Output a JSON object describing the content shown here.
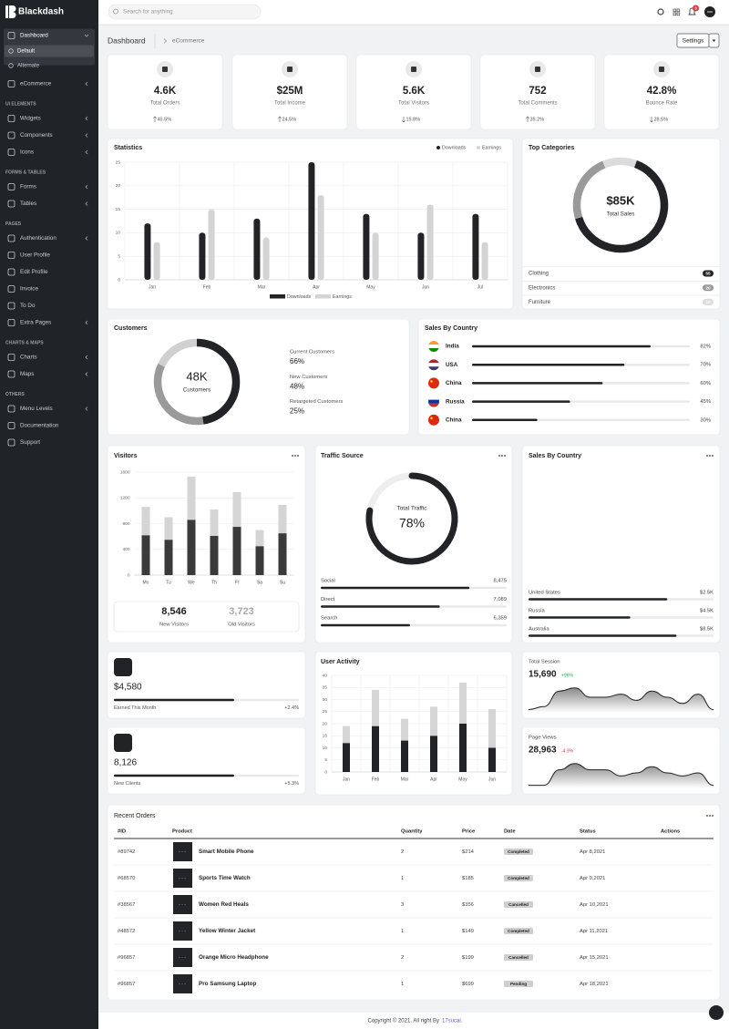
{
  "brand": "Blackdash",
  "search_placeholder": "Search for anything",
  "notifications": 3,
  "sidebar": [
    {
      "items": [
        {
          "label": "Dashboard",
          "submenu": true,
          "active": true,
          "children": [
            {
              "label": "Default",
              "active": true
            },
            {
              "label": "Alternate"
            }
          ]
        },
        {
          "label": "eCommerce",
          "submenu": true
        }
      ]
    },
    {
      "title": "UI ELEMENTS",
      "items": [
        {
          "label": "Widgets",
          "submenu": true
        },
        {
          "label": "Components",
          "submenu": true
        },
        {
          "label": "Icons",
          "submenu": true
        }
      ]
    },
    {
      "title": "FORMS & TABLES",
      "items": [
        {
          "label": "Forms",
          "submenu": true
        },
        {
          "label": "Tables",
          "submenu": true
        }
      ]
    },
    {
      "title": "PAGES",
      "items": [
        {
          "label": "Authentication",
          "submenu": true
        },
        {
          "label": "User Profile"
        },
        {
          "label": "Edit Profile"
        },
        {
          "label": "Invoice"
        },
        {
          "label": "To Do"
        },
        {
          "label": "Extra Pages",
          "submenu": true
        }
      ]
    },
    {
      "title": "CHARTS & MAPS",
      "items": [
        {
          "label": "Charts",
          "submenu": true
        },
        {
          "label": "Maps",
          "submenu": true
        }
      ]
    },
    {
      "title": "OTHERS",
      "items": [
        {
          "label": "Menu Levels",
          "submenu": true
        },
        {
          "label": "Documentation"
        },
        {
          "label": "Support"
        }
      ]
    }
  ],
  "breadcrumb": {
    "title": "Dashboard",
    "current": "eCommerce",
    "button": "Settings"
  },
  "stats": [
    {
      "value": "4.6K",
      "label": "Total Orders",
      "change": "45.5%",
      "trend": "up"
    },
    {
      "value": "$25M",
      "label": "Total Income",
      "change": "24.5%",
      "trend": "up"
    },
    {
      "value": "5.6K",
      "label": "Total Visitors",
      "change": "15.8%",
      "trend": "down"
    },
    {
      "value": "752",
      "label": "Total Comments",
      "change": "35.2%",
      "trend": "up"
    },
    {
      "value": "42.8%",
      "label": "Bounce Rate",
      "change": "28.5%",
      "trend": "down"
    }
  ],
  "statistics": {
    "type": "bar",
    "title": "Statistics",
    "categories": [
      "Jan",
      "Feb",
      "Mar",
      "Apr",
      "May",
      "Jun",
      "Jul"
    ],
    "series": [
      {
        "name": "Downloads",
        "color": "#222326",
        "values": [
          12,
          10,
          13,
          25,
          14,
          10,
          14
        ]
      },
      {
        "name": "Earnings",
        "color": "#d4d4d4",
        "values": [
          8,
          15,
          9,
          18,
          10,
          16,
          8
        ]
      }
    ],
    "ylim": [
      0,
      25
    ],
    "yticks": [
      0,
      5,
      10,
      15,
      20,
      25
    ],
    "grid": true
  },
  "top_categories": {
    "type": "pie",
    "title": "Top Categories",
    "center_value": "$85K",
    "center_label": "Total Sales",
    "categories": [
      "Clothing",
      "Electronics",
      "Furniture"
    ],
    "values": [
      55,
      20,
      10
    ],
    "colors": [
      "#222326",
      "#9a9a9a",
      "#dcdcdc"
    ]
  },
  "customers": {
    "type": "pie",
    "title": "Customers",
    "center_value": "48K",
    "center_label": "Customers",
    "categories": [
      "Current Customers",
      "New Customers",
      "Retargeted Customers"
    ],
    "values": [
      66,
      48,
      25
    ],
    "value_labels": [
      "66%",
      "48%",
      "25%"
    ],
    "colors": [
      "#222326",
      "#9a9a9a",
      "#d0d0d0"
    ]
  },
  "sales_by_country": {
    "type": "progress",
    "title": "Sales By Country",
    "categories": [
      "India",
      "USA",
      "China",
      "Russia",
      "China"
    ],
    "values": [
      82,
      70,
      60,
      45,
      30
    ],
    "value_labels": [
      "82%",
      "70%",
      "60%",
      "45%",
      "30%"
    ],
    "xlim": [
      0,
      100
    ],
    "flag_colors": [
      [
        "#ff9933",
        "#ffffff",
        "#138808"
      ],
      [
        "#b22234",
        "#ffffff",
        "#3c3b6e"
      ],
      [
        "#de2910"
      ],
      [
        "#ffffff",
        "#0039a6",
        "#d52b1e"
      ],
      [
        "#de2910"
      ]
    ]
  },
  "visitors": {
    "type": "stacked-bar",
    "title": "Visitors",
    "categories": [
      "Mo",
      "Tu",
      "We",
      "Th",
      "Fr",
      "Sa",
      "Su"
    ],
    "series": [
      {
        "color": "#3a3a3a",
        "values": [
          620,
          550,
          860,
          610,
          750,
          450,
          650
        ]
      },
      {
        "color": "#d5d5d5",
        "values": [
          440,
          350,
          670,
          410,
          540,
          250,
          440
        ]
      }
    ],
    "ylim": [
      0,
      1600
    ],
    "yticks": [
      0,
      400,
      800,
      1200,
      1600
    ],
    "grid": true,
    "summary": [
      {
        "value": "8,546",
        "label": "New Visitors"
      },
      {
        "value": "3,723",
        "label": "Old Visitors"
      }
    ]
  },
  "traffic_source": {
    "type": "gauge",
    "title": "Traffic Source",
    "label": "Total Traffic",
    "values": [
      78
    ],
    "value_labels": [
      "78%"
    ],
    "ylim": [
      0,
      100
    ],
    "sources": {
      "categories": [
        "Social",
        "Direct",
        "Search"
      ],
      "amounts": [
        "8,475",
        "7,089",
        "6,359"
      ],
      "progress": [
        80,
        64,
        48
      ],
      "xlim": [
        0,
        100
      ]
    }
  },
  "sales_by_country_2": {
    "title": "Sales By Country",
    "categories": [
      "United States",
      "Russia",
      "Australia"
    ],
    "amounts": [
      "$2.5K",
      "$4.5K",
      "$8.5K"
    ],
    "progress": [
      75,
      55,
      80
    ],
    "xlim": [
      0,
      100
    ]
  },
  "earned": {
    "value": "$4,580",
    "label": "Earned This Month",
    "change": "+2.4%",
    "progress": 65,
    "xlim": [
      0,
      100
    ]
  },
  "new_clients": {
    "value": "8,126",
    "label": "New Clients",
    "change": "+5.3%",
    "progress": 65,
    "xlim": [
      0,
      100
    ]
  },
  "user_activity": {
    "type": "stacked-bar",
    "title": "User Activity",
    "categories": [
      "Jan",
      "Feb",
      "Mar",
      "Apr",
      "May",
      "Jun"
    ],
    "series": [
      {
        "color": "#222326",
        "values": [
          12,
          19,
          13,
          15,
          20,
          10
        ]
      },
      {
        "color": "#d5d5d5",
        "values": [
          7,
          15,
          9,
          12,
          17,
          16
        ]
      }
    ],
    "ylim": [
      0,
      40
    ],
    "yticks": [
      0,
      5,
      10,
      15,
      20,
      25,
      30,
      35,
      40
    ],
    "grid": true
  },
  "total_session": {
    "type": "area",
    "title": "Total Session",
    "value": "15,690",
    "change": "+96%",
    "change_color": "#28a745",
    "values": [
      1,
      2,
      7,
      8,
      5,
      5,
      6,
      4,
      7,
      5,
      3,
      6,
      1
    ],
    "ylim": [
      0,
      10
    ]
  },
  "page_views": {
    "type": "area",
    "title": "Page Views",
    "value": "28,963",
    "change": "-4.9%",
    "change_color": "#dc3545",
    "values": [
      1,
      1,
      6,
      8,
      6,
      6,
      4,
      5,
      7,
      5,
      4,
      5,
      1
    ],
    "ylim": [
      0,
      10
    ]
  },
  "recent_orders": {
    "title": "Recent Orders",
    "columns": [
      "#ID",
      "Product",
      "Quantity",
      "Price",
      "Date",
      "Status",
      "Actions"
    ],
    "rows": [
      [
        "#89742",
        "Smart Mobile Phone",
        2,
        "$214",
        "Completed",
        "Apr 8,2021"
      ],
      [
        "#68570",
        "Sports Time Watch",
        1,
        "$185",
        "Completed",
        "Apr 9,2021"
      ],
      [
        "#38567",
        "Women Red Heals",
        3,
        "$356",
        "Cancelled",
        "Apr 10,2021"
      ],
      [
        "#48572",
        "Yellow Winter Jacket",
        1,
        "$149",
        "Completed",
        "Apr 11,2021"
      ],
      [
        "#96857",
        "Orange Micro Headphone",
        2,
        "$199",
        "Cancelled",
        "Apr 15,2021"
      ],
      [
        "#96857",
        "Pro Samsung Laptop",
        1,
        "$699",
        "Pending",
        "Apr 18,2021"
      ]
    ]
  },
  "footer": {
    "text": "Copyright © 2021. All right By",
    "link": "17sucai."
  }
}
